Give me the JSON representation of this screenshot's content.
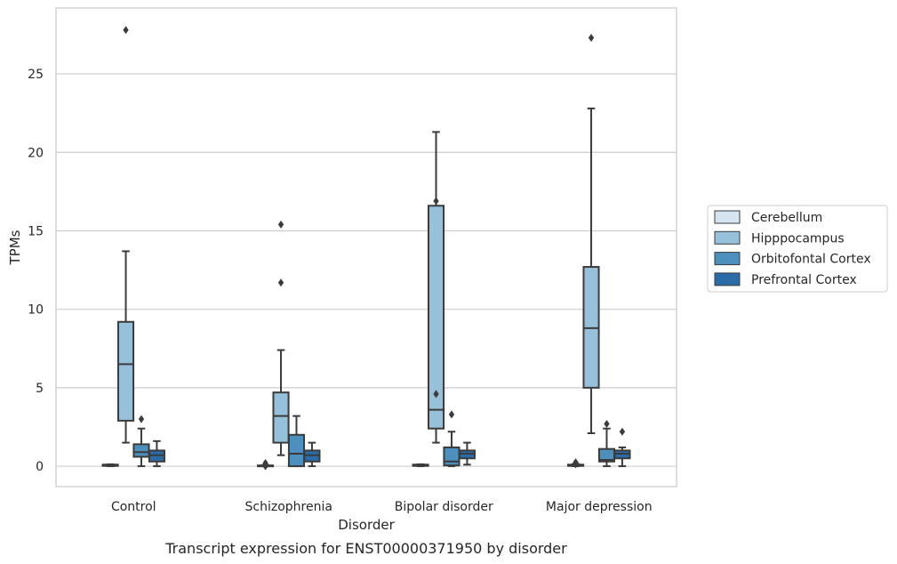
{
  "chart_data": {
    "type": "box",
    "xlabel": "Disorder",
    "ylabel": "TPMs",
    "caption": "Transcript expression for ENST00000371950 by disorder",
    "categories": [
      "Control",
      "Schizophrenia",
      "Bipolar disorder",
      "Major depression"
    ],
    "ylim": [
      -1.3,
      29.2
    ],
    "yticks": [
      0,
      5,
      10,
      15,
      20,
      25
    ],
    "grid": "horizontal",
    "legend_position": "right",
    "series": [
      {
        "name": "Cerebellum",
        "color": "#d5e4ef",
        "boxes": [
          {
            "whisker_low": 0.0,
            "q1": 0.02,
            "median": 0.05,
            "q3": 0.1,
            "whisker_high": 0.12,
            "outliers": []
          },
          {
            "whisker_low": 0.0,
            "q1": 0.0,
            "median": 0.02,
            "q3": 0.05,
            "whisker_high": 0.08,
            "outliers": [
              0.2,
              0.1,
              0.0
            ]
          },
          {
            "whisker_low": 0.0,
            "q1": 0.02,
            "median": 0.05,
            "q3": 0.1,
            "whisker_high": 0.12,
            "outliers": []
          },
          {
            "whisker_low": 0.0,
            "q1": 0.02,
            "median": 0.05,
            "q3": 0.1,
            "whisker_high": 0.15,
            "outliers": [
              0.25,
              0.12
            ]
          }
        ]
      },
      {
        "name": "Hipppocampus",
        "color": "#97c0da",
        "boxes": [
          {
            "whisker_low": 1.5,
            "q1": 2.9,
            "median": 6.5,
            "q3": 9.2,
            "whisker_high": 13.7,
            "outliers": [
              27.8
            ]
          },
          {
            "whisker_low": 0.7,
            "q1": 1.5,
            "median": 3.2,
            "q3": 4.7,
            "whisker_high": 7.4,
            "outliers": [
              15.4,
              11.7
            ]
          },
          {
            "whisker_low": 1.5,
            "q1": 2.4,
            "median": 3.6,
            "q3": 16.6,
            "whisker_high": 21.3,
            "outliers": [
              16.9,
              4.6
            ]
          },
          {
            "whisker_low": 2.1,
            "q1": 5.0,
            "median": 8.8,
            "q3": 12.7,
            "whisker_high": 22.8,
            "outliers": [
              27.3
            ]
          }
        ]
      },
      {
        "name": "Orbitofontal Cortex",
        "color": "#4d90bd",
        "boxes": [
          {
            "whisker_low": 0.0,
            "q1": 0.6,
            "median": 0.9,
            "q3": 1.4,
            "whisker_high": 2.4,
            "outliers": [
              3.0
            ]
          },
          {
            "whisker_low": 0.0,
            "q1": 0.0,
            "median": 0.8,
            "q3": 2.0,
            "whisker_high": 3.2,
            "outliers": []
          },
          {
            "whisker_low": 0.0,
            "q1": 0.05,
            "median": 0.3,
            "q3": 1.2,
            "whisker_high": 2.2,
            "outliers": [
              3.3
            ]
          },
          {
            "whisker_low": 0.0,
            "q1": 0.3,
            "median": 0.4,
            "q3": 1.1,
            "whisker_high": 2.4,
            "outliers": [
              2.7
            ]
          }
        ]
      },
      {
        "name": "Prefrontal Cortex",
        "color": "#2b6ca8",
        "boxes": [
          {
            "whisker_low": 0.0,
            "q1": 0.3,
            "median": 0.7,
            "q3": 1.0,
            "whisker_high": 1.6,
            "outliers": []
          },
          {
            "whisker_low": 0.0,
            "q1": 0.3,
            "median": 0.7,
            "q3": 1.0,
            "whisker_high": 1.5,
            "outliers": []
          },
          {
            "whisker_low": 0.1,
            "q1": 0.5,
            "median": 0.8,
            "q3": 1.0,
            "whisker_high": 1.5,
            "outliers": []
          },
          {
            "whisker_low": 0.0,
            "q1": 0.5,
            "median": 0.8,
            "q3": 1.0,
            "whisker_high": 1.2,
            "outliers": [
              2.2
            ]
          }
        ]
      }
    ]
  }
}
